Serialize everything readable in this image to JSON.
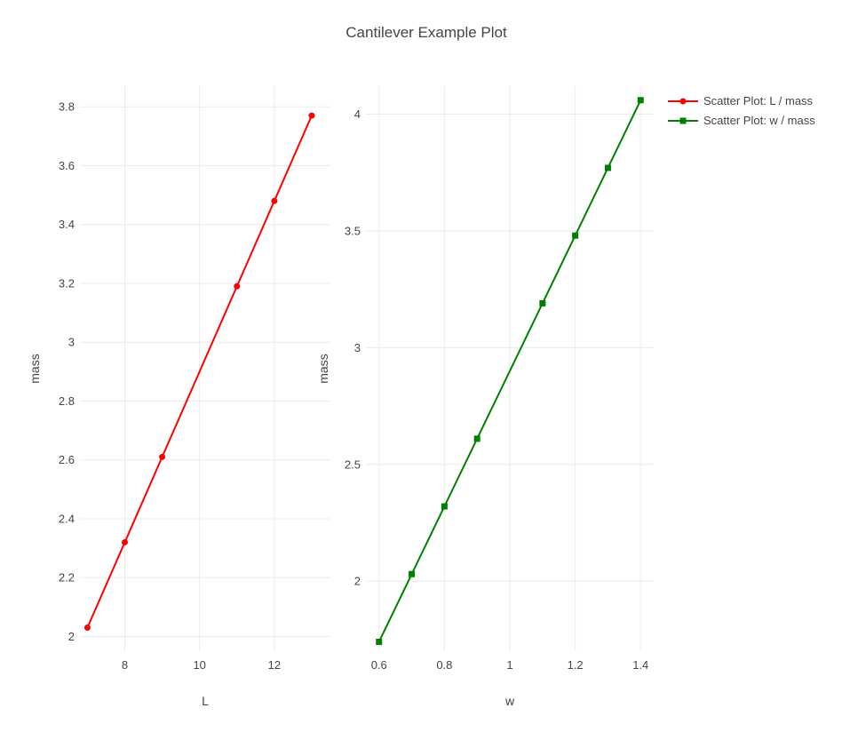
{
  "title": "Cantilever Example Plot",
  "legend": {
    "placement": "top-right",
    "entries": [
      {
        "label": "Scatter Plot: L / mass",
        "color": "#ff0000",
        "marker": "circle"
      },
      {
        "label": "Scatter Plot: w / mass",
        "color": "#008000",
        "marker": "square"
      }
    ]
  },
  "chart_data": [
    {
      "type": "line",
      "xlabel": "L",
      "ylabel": "mass",
      "grid": true,
      "xlim": [
        6.8,
        13.5
      ],
      "ylim": [
        1.95,
        3.87
      ],
      "xticks": [
        8,
        10,
        12
      ],
      "yticks": [
        2,
        2.2,
        2.4,
        2.6,
        2.8,
        3,
        3.2,
        3.4,
        3.6,
        3.8
      ],
      "series": [
        {
          "name": "Scatter Plot: L / mass",
          "color": "#ff0000",
          "marker": "circle",
          "x": [
            7,
            8,
            9,
            11,
            12,
            13
          ],
          "y": [
            2.03,
            2.32,
            2.61,
            3.19,
            3.48,
            3.77
          ]
        }
      ]
    },
    {
      "type": "line",
      "xlabel": "w",
      "ylabel": "mass",
      "grid": true,
      "xlim": [
        0.56,
        1.44
      ],
      "ylim": [
        1.7,
        4.12
      ],
      "xticks": [
        0.6,
        0.8,
        1,
        1.2,
        1.4
      ],
      "yticks": [
        2,
        2.5,
        3,
        3.5,
        4
      ],
      "series": [
        {
          "name": "Scatter Plot: w / mass",
          "color": "#008000",
          "marker": "square",
          "x": [
            0.6,
            0.7,
            0.8,
            0.9,
            1.1,
            1.2,
            1.3,
            1.4
          ],
          "y": [
            1.74,
            2.03,
            2.32,
            2.61,
            3.19,
            3.48,
            3.77,
            4.06
          ]
        }
      ]
    }
  ]
}
